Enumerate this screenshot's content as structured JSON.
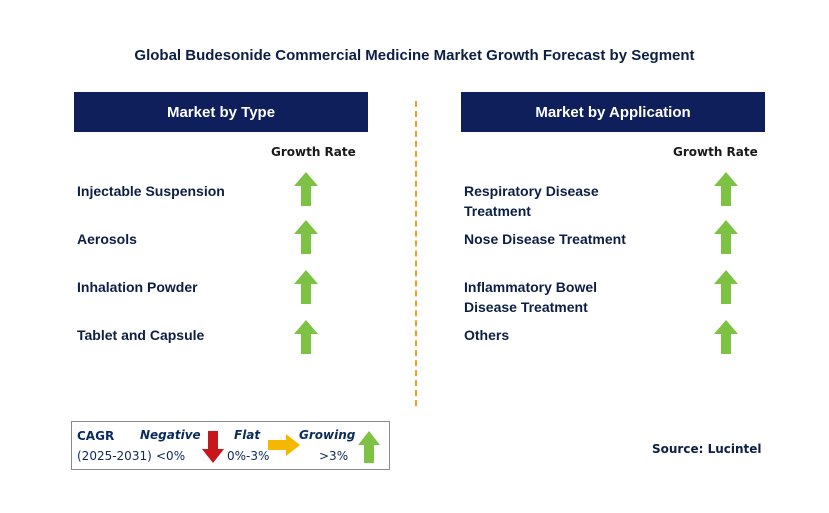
{
  "title": "Global Budesonide Commercial Medicine Market  Growth Forecast by Segment",
  "left_panel": {
    "header": "Market by Type",
    "growth_rate_label": "Growth Rate",
    "items": [
      {
        "line1": "Injectable Suspension",
        "line2": "",
        "trend": "growing"
      },
      {
        "line1": "Aerosols",
        "line2": "",
        "trend": "growing"
      },
      {
        "line1": "Inhalation Powder",
        "line2": "",
        "trend": "growing"
      },
      {
        "line1": "Tablet and Capsule",
        "line2": "",
        "trend": "growing"
      }
    ]
  },
  "right_panel": {
    "header": "Market by Application",
    "growth_rate_label": "Growth Rate",
    "items": [
      {
        "line1": "Respiratory Disease",
        "line2": "Treatment",
        "trend": "growing"
      },
      {
        "line1": "Nose Disease Treatment",
        "line2": "",
        "trend": "growing"
      },
      {
        "line1": "Inflammatory Bowel",
        "line2": "Disease Treatment",
        "trend": "growing"
      },
      {
        "line1": "Others",
        "line2": "",
        "trend": "growing"
      }
    ]
  },
  "legend": {
    "cagr_label": "CAGR",
    "period": "(2025-2031)",
    "negative_label": "Negative",
    "negative_range": "<0%",
    "flat_label": "Flat",
    "flat_range": "0%-3%",
    "growing_label": "Growing",
    "growing_range": ">3%"
  },
  "source": "Source: Lucintel",
  "colors": {
    "header_bg": "#0f1f5c",
    "growing_arrow": "#7dc242",
    "negative_arrow": "#c8161d",
    "flat_arrow": "#f5b800",
    "divider": "#f0a020"
  }
}
